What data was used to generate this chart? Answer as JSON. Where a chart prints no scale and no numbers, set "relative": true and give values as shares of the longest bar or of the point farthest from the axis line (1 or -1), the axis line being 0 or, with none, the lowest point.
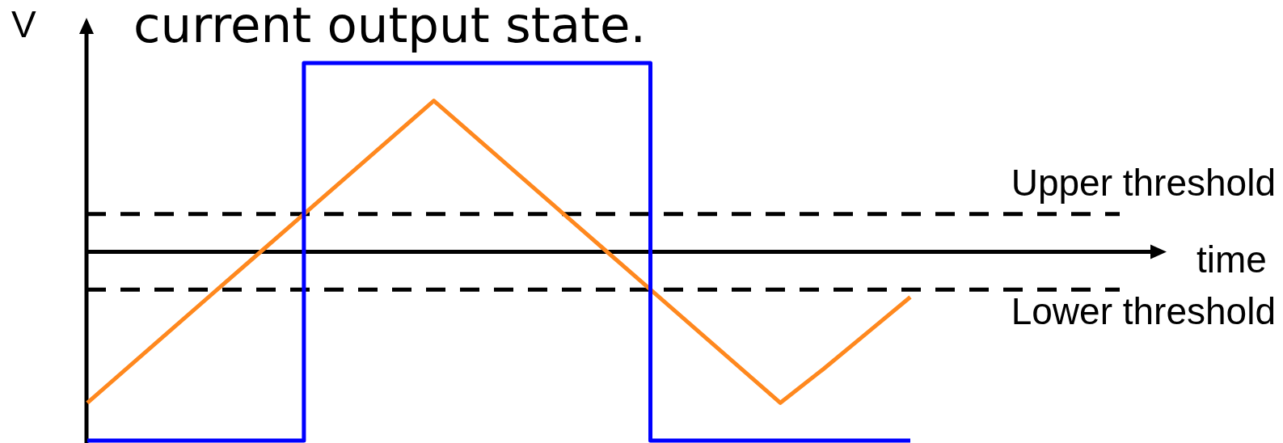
{
  "chart_data": {
    "type": "line",
    "title": "current output state.",
    "ylabel": "V",
    "relative": true,
    "annotations": [
      "time"
    ],
    "categories": [
      null,
      null,
      null,
      null,
      null,
      null,
      null,
      null,
      null,
      null,
      null,
      null,
      null,
      null,
      null,
      null,
      null,
      null,
      null,
      null
    ],
    "series": [
      {
        "color": "#ff881e",
        "values": [
          -0.8,
          -0.6,
          -0.4,
          -0.2,
          0,
          0.2,
          0.4,
          0.6,
          0.8,
          0.6,
          0.4,
          0.2,
          0,
          -0.2,
          -0.4,
          -0.6,
          -0.8,
          -0.62,
          -0.43,
          -0.24
        ]
      },
      {
        "type": "step",
        "color": "#0000ff",
        "values": [
          -1,
          -1,
          -1,
          -1,
          -1,
          1,
          1,
          1,
          1,
          1,
          1,
          1,
          1,
          -1,
          -1,
          -1,
          -1,
          -1,
          -1,
          -1
        ]
      }
    ],
    "ref_lines": [
      {
        "axis": "y",
        "value": 0.2,
        "label": "Upper threshold",
        "color": "#000000",
        "line_style": "dashed"
      },
      {
        "axis": "y",
        "value": -0.2,
        "label": "Lower threshold",
        "color": "#000000",
        "line_style": "dashed"
      }
    ]
  }
}
